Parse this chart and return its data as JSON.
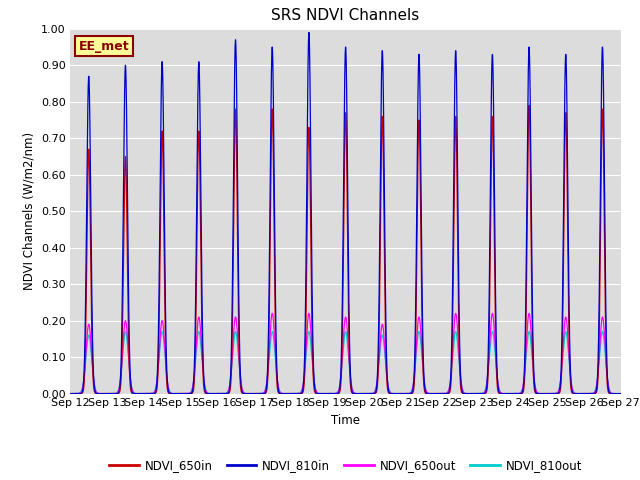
{
  "title": "SRS NDVI Channels",
  "ylabel": "NDVI Channels (W/m2/nm)",
  "xlabel": "Time",
  "xlim_start": 0,
  "xlim_end": 15,
  "ylim": [
    0.0,
    1.0
  ],
  "annotation_text": "EE_met",
  "annotation_color": "#8B0000",
  "annotation_bg": "#FFFF99",
  "bg_color": "#DCDCDC",
  "colors": {
    "NDVI_650in": "#CC0000",
    "NDVI_810in": "#0000CC",
    "NDVI_650out": "#FF00FF",
    "NDVI_810out": "#00CCCC"
  },
  "peak_positions": [
    0.5,
    1.5,
    2.5,
    3.5,
    4.5,
    5.5,
    6.5,
    7.5,
    8.5,
    9.5,
    10.5,
    11.5,
    12.5,
    13.5,
    14.5
  ],
  "peak_heights_810in": [
    0.87,
    0.9,
    0.91,
    0.91,
    0.97,
    0.95,
    0.99,
    0.95,
    0.94,
    0.93,
    0.94,
    0.93,
    0.95,
    0.93,
    0.95
  ],
  "peak_heights_650in": [
    0.67,
    0.65,
    0.72,
    0.72,
    0.78,
    0.78,
    0.73,
    0.77,
    0.76,
    0.75,
    0.76,
    0.76,
    0.79,
    0.77,
    0.78
  ],
  "peak_heights_650out": [
    0.19,
    0.2,
    0.2,
    0.21,
    0.21,
    0.22,
    0.22,
    0.21,
    0.19,
    0.21,
    0.22,
    0.22,
    0.22,
    0.21,
    0.21
  ],
  "peak_heights_810out": [
    0.16,
    0.17,
    0.17,
    0.17,
    0.17,
    0.17,
    0.17,
    0.17,
    0.16,
    0.17,
    0.17,
    0.17,
    0.17,
    0.17,
    0.17
  ],
  "xtick_labels": [
    "Sep 12",
    "Sep 13",
    "Sep 14",
    "Sep 15",
    "Sep 16",
    "Sep 17",
    "Sep 18",
    "Sep 19",
    "Sep 20",
    "Sep 21",
    "Sep 22",
    "Sep 23",
    "Sep 24",
    "Sep 25",
    "Sep 26",
    "Sep 27"
  ],
  "xtick_positions": [
    0,
    1,
    2,
    3,
    4,
    5,
    6,
    7,
    8,
    9,
    10,
    11,
    12,
    13,
    14,
    15
  ],
  "ytick_values": [
    0.0,
    0.1,
    0.2,
    0.3,
    0.4,
    0.5,
    0.6,
    0.7,
    0.8,
    0.9,
    1.0
  ],
  "sigma_810in": 0.055,
  "sigma_650in": 0.05,
  "sigma_650out": 0.075,
  "sigma_810out": 0.08
}
